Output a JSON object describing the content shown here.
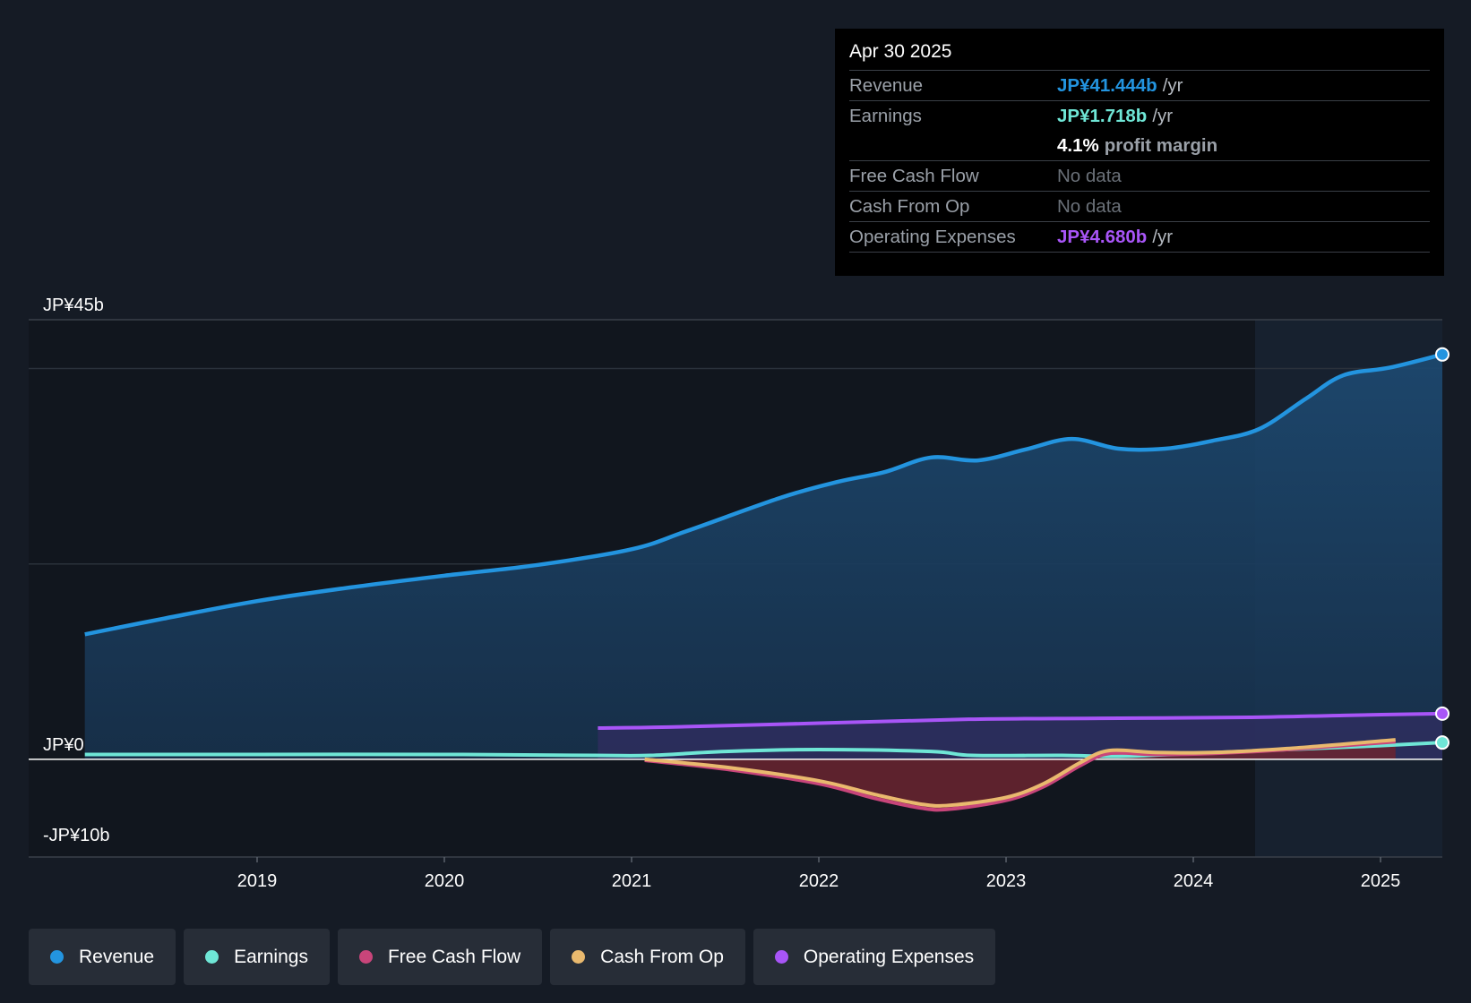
{
  "tooltip": {
    "date": "Apr 30 2025",
    "rows": {
      "revenue": {
        "label": "Revenue",
        "value": "JP¥41.444b",
        "unit": "/yr"
      },
      "earnings": {
        "label": "Earnings",
        "value": "JP¥1.718b",
        "unit": "/yr"
      },
      "margin": {
        "value": "4.1%",
        "unit": "profit margin"
      },
      "fcf": {
        "label": "Free Cash Flow",
        "value": "No data"
      },
      "cfo": {
        "label": "Cash From Op",
        "value": "No data"
      },
      "opex": {
        "label": "Operating Expenses",
        "value": "JP¥4.680b",
        "unit": "/yr"
      }
    }
  },
  "legend": [
    {
      "label": "Revenue",
      "color": "#2394df"
    },
    {
      "label": "Earnings",
      "color": "#6fe6d6"
    },
    {
      "label": "Free Cash Flow",
      "color": "#c8457a"
    },
    {
      "label": "Cash From Op",
      "color": "#e9b96e"
    },
    {
      "label": "Operating Expenses",
      "color": "#a855f7"
    }
  ],
  "colors": {
    "revenue": "#2394df",
    "earnings": "#6fe6d6",
    "fcf": "#c8457a",
    "cfo": "#e9b96e",
    "opex": "#a855f7"
  },
  "chart_data": {
    "type": "line",
    "title": "",
    "xlabel": "",
    "ylabel": "",
    "ylim": [
      -10,
      45
    ],
    "xlim": [
      2017.78,
      2025.33
    ],
    "y_tick_labels": [
      {
        "value": 45,
        "label": "JP¥45b"
      },
      {
        "value": 0,
        "label": "JP¥0"
      },
      {
        "value": -10,
        "label": "-JP¥10b"
      }
    ],
    "gridlines": [
      40,
      20
    ],
    "x_ticks": [
      {
        "value": 2019,
        "label": "2019"
      },
      {
        "value": 2020,
        "label": "2020"
      },
      {
        "value": 2021,
        "label": "2021"
      },
      {
        "value": 2022,
        "label": "2022"
      },
      {
        "value": 2023,
        "label": "2023"
      },
      {
        "value": 2024,
        "label": "2024"
      },
      {
        "value": 2025,
        "label": "2025"
      }
    ],
    "forecast_start": 2024.33,
    "series": [
      {
        "key": "revenue",
        "name": "Revenue",
        "area": true,
        "points": [
          [
            2018.08,
            12.8
          ],
          [
            2018.5,
            14.4
          ],
          [
            2019.0,
            16.2
          ],
          [
            2019.5,
            17.6
          ],
          [
            2020.0,
            18.8
          ],
          [
            2020.5,
            19.9
          ],
          [
            2021.0,
            21.5
          ],
          [
            2021.3,
            23.4
          ],
          [
            2021.8,
            26.8
          ],
          [
            2022.1,
            28.4
          ],
          [
            2022.35,
            29.4
          ],
          [
            2022.6,
            30.9
          ],
          [
            2022.85,
            30.6
          ],
          [
            2023.1,
            31.7
          ],
          [
            2023.35,
            32.8
          ],
          [
            2023.6,
            31.8
          ],
          [
            2023.85,
            31.8
          ],
          [
            2024.1,
            32.6
          ],
          [
            2024.35,
            33.8
          ],
          [
            2024.6,
            36.9
          ],
          [
            2024.8,
            39.3
          ],
          [
            2025.05,
            40.1
          ],
          [
            2025.33,
            41.444
          ]
        ]
      },
      {
        "key": "earnings",
        "name": "Earnings",
        "area": false,
        "points": [
          [
            2018.08,
            0.5
          ],
          [
            2019.0,
            0.5
          ],
          [
            2020.0,
            0.5
          ],
          [
            2020.8,
            0.4
          ],
          [
            2021.1,
            0.4
          ],
          [
            2021.5,
            0.8
          ],
          [
            2022.0,
            1.0
          ],
          [
            2022.6,
            0.8
          ],
          [
            2022.82,
            0.4
          ],
          [
            2023.3,
            0.4
          ],
          [
            2023.6,
            0.3
          ],
          [
            2024.0,
            0.6
          ],
          [
            2024.5,
            1.0
          ],
          [
            2025.0,
            1.4
          ],
          [
            2025.33,
            1.718
          ]
        ]
      },
      {
        "key": "opex",
        "name": "Operating Expenses",
        "area": true,
        "points": [
          [
            2020.82,
            3.2
          ],
          [
            2021.2,
            3.3
          ],
          [
            2022.0,
            3.7
          ],
          [
            2022.8,
            4.1
          ],
          [
            2023.5,
            4.2
          ],
          [
            2024.3,
            4.3
          ],
          [
            2024.8,
            4.5
          ],
          [
            2025.33,
            4.68
          ]
        ]
      },
      {
        "key": "fcf",
        "name": "Free Cash Flow",
        "area": true,
        "points": [
          [
            2021.07,
            -0.1
          ],
          [
            2021.5,
            -1.0
          ],
          [
            2022.0,
            -2.5
          ],
          [
            2022.3,
            -4.0
          ],
          [
            2022.55,
            -5.0
          ],
          [
            2022.7,
            -5.1
          ],
          [
            2023.0,
            -4.2
          ],
          [
            2023.2,
            -2.8
          ],
          [
            2023.4,
            -0.6
          ],
          [
            2023.55,
            0.6
          ],
          [
            2023.8,
            0.5
          ],
          [
            2024.1,
            0.6
          ],
          [
            2024.5,
            1.0
          ],
          [
            2025.08,
            1.8
          ]
        ]
      },
      {
        "key": "cfo",
        "name": "Cash From Op",
        "area": false,
        "points": [
          [
            2021.07,
            0.0
          ],
          [
            2021.5,
            -0.8
          ],
          [
            2022.0,
            -2.2
          ],
          [
            2022.3,
            -3.6
          ],
          [
            2022.55,
            -4.6
          ],
          [
            2022.7,
            -4.7
          ],
          [
            2023.0,
            -3.9
          ],
          [
            2023.2,
            -2.5
          ],
          [
            2023.4,
            -0.3
          ],
          [
            2023.55,
            0.9
          ],
          [
            2023.8,
            0.7
          ],
          [
            2024.1,
            0.7
          ],
          [
            2024.5,
            1.1
          ],
          [
            2025.08,
            2.0
          ]
        ]
      }
    ]
  }
}
